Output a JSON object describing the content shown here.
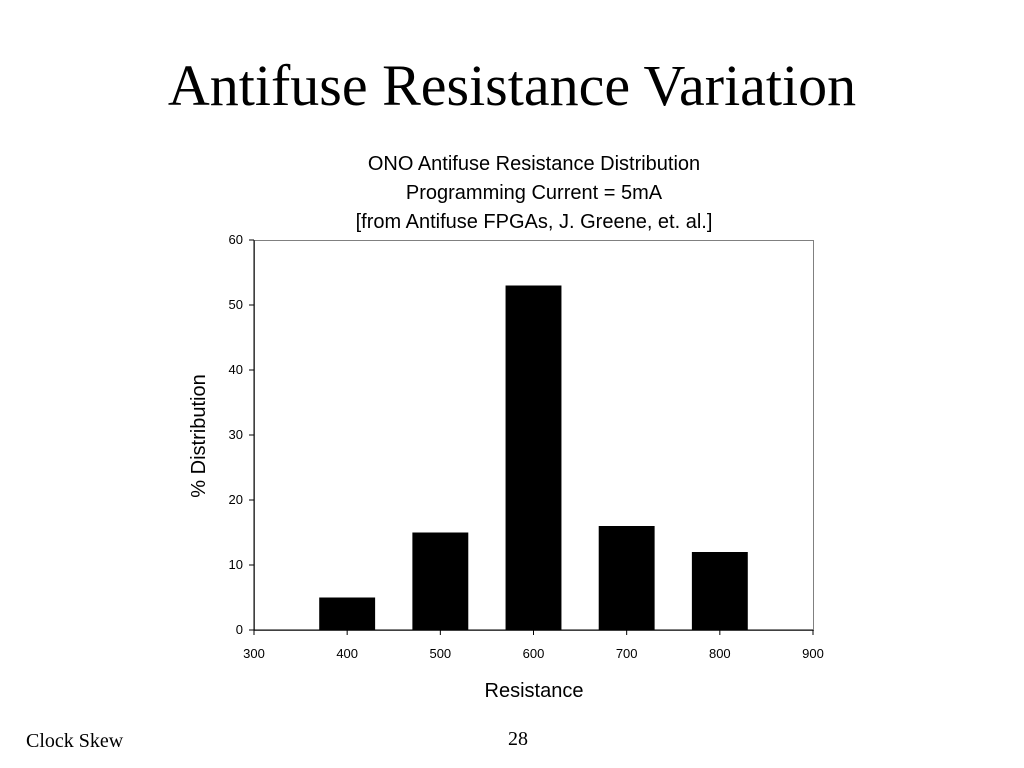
{
  "slide": {
    "title": "Antifuse Resistance Variation",
    "footer_left": "Clock Skew",
    "page_number": "28"
  },
  "chart_data": {
    "type": "bar",
    "title_lines": [
      "ONO Antifuse Resistance Distribution",
      "Programming Current = 5mA",
      "[from Antifuse FPGAs, J. Greene, et. al.]"
    ],
    "xlabel": "Resistance",
    "ylabel": "% Distribution",
    "x": [
      400,
      500,
      600,
      700,
      800
    ],
    "values": [
      5,
      15,
      53,
      16,
      12
    ],
    "bar_width": 60,
    "xlim": [
      300,
      900
    ],
    "ylim": [
      0,
      60
    ],
    "xticks": [
      300,
      400,
      500,
      600,
      700,
      800,
      900
    ],
    "yticks": [
      0,
      10,
      20,
      30,
      40,
      50,
      60
    ],
    "bar_color": "#000000",
    "grid": false,
    "legend": "none"
  }
}
